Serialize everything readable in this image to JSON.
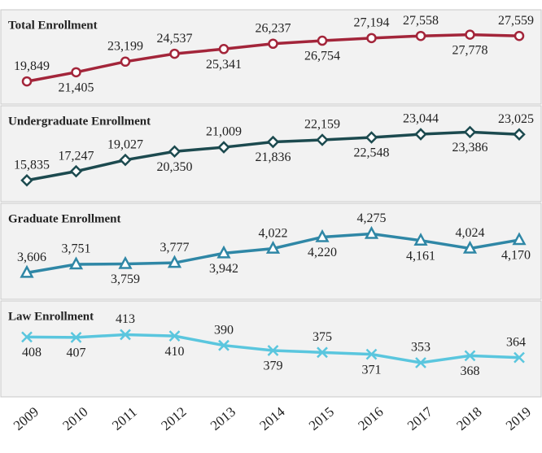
{
  "chart_data": {
    "type": "line",
    "categories": [
      "2009",
      "2010",
      "2011",
      "2012",
      "2013",
      "2014",
      "2015",
      "2016",
      "2017",
      "2018",
      "2019"
    ],
    "series": [
      {
        "name": "Total Enrollment",
        "color": "#a3253a",
        "marker": "circle",
        "ylim": [
          16000,
          32000
        ],
        "values": [
          19849,
          21405,
          23199,
          24537,
          25341,
          26237,
          26754,
          27194,
          27558,
          27778,
          27559
        ],
        "value_labels": [
          "19,849",
          "21,405",
          "23,199",
          "24,537",
          "25,341",
          "26,237",
          "26,754",
          "27,194",
          "27,558",
          "27,778",
          "27,559"
        ]
      },
      {
        "name": "Undergraduate Enrollment",
        "color": "#1c4a4f",
        "marker": "diamond",
        "ylim": [
          12500,
          27500
        ],
        "values": [
          15835,
          17247,
          19027,
          20350,
          21009,
          21836,
          22159,
          22548,
          23044,
          23386,
          23025
        ],
        "value_labels": [
          "15,835",
          "17,247",
          "19,027",
          "20,350",
          "21,009",
          "21,836",
          "22,159",
          "22,548",
          "23,044",
          "23,386",
          "23,025"
        ]
      },
      {
        "name": "Graduate Enrollment",
        "color": "#2f87a6",
        "marker": "triangle",
        "ylim": [
          3150,
          4800
        ],
        "values": [
          3606,
          3751,
          3759,
          3777,
          3942,
          4022,
          4220,
          4275,
          4161,
          4024,
          4170
        ],
        "value_labels": [
          "3,606",
          "3,751",
          "3,759",
          "3,777",
          "3,942",
          "4,022",
          "4,220",
          "4,275",
          "4,161",
          "4,024",
          "4,170"
        ]
      },
      {
        "name": "Law Enrollment",
        "color": "#5ac6de",
        "marker": "x",
        "ylim": [
          280,
          485
        ],
        "values": [
          408,
          407,
          413,
          410,
          390,
          379,
          375,
          371,
          353,
          368,
          364
        ]
      }
    ]
  }
}
